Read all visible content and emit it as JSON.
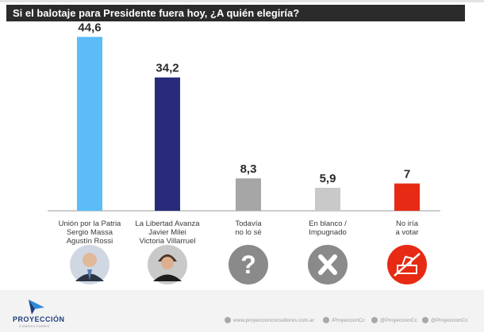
{
  "title": "Si el balotaje para Presidente fuera hoy, ¿A quién elegiría?",
  "chart_data": {
    "type": "bar",
    "title": "Si el balotaje para Presidente fuera hoy, ¿A quién elegiría?",
    "categories": [
      [
        "Unión por la Patria",
        "Sergio Massa",
        "Agustín Rossi"
      ],
      [
        "La Libertad Avanza",
        "Javier Milei",
        "Victoria Villarruel"
      ],
      [
        "Todavía",
        "no lo sé"
      ],
      [
        "En blanco /",
        "Impugnado"
      ],
      [
        "No iría",
        "a votar"
      ]
    ],
    "values": [
      44.6,
      34.2,
      8.3,
      5.9,
      7
    ],
    "value_labels": [
      "44,6",
      "34,2",
      "8,3",
      "5,9",
      "7"
    ],
    "colors": [
      "#5bbcf8",
      "#2a2a7c",
      "#a6a6a6",
      "#c9c9c9",
      "#e62a14"
    ],
    "ylim": [
      0,
      50
    ],
    "grid": false,
    "legend": "none"
  },
  "icons": [
    "candidate-massa-photo",
    "candidate-milei-photo",
    "question-mark-icon",
    "x-mark-icon",
    "no-vote-icon"
  ],
  "footer": {
    "brand": "PROYECCIÓN",
    "brand_sub": "CONSULTORES",
    "website": "www.proyeccionconsultores.com.ar",
    "facebook": "/ProyeccionCc",
    "twitter": "@ProyeccionCc",
    "instagram": "@ProyeccionCc"
  }
}
